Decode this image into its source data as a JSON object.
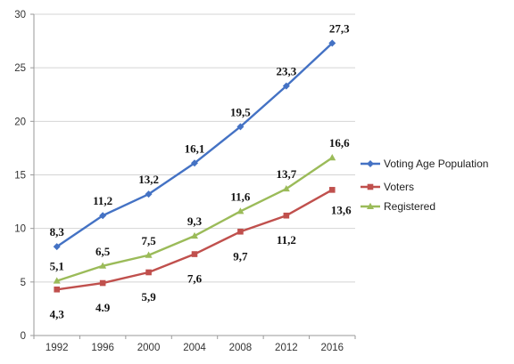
{
  "chart_data": {
    "type": "line",
    "x": [
      "1992",
      "1996",
      "2000",
      "2004",
      "2008",
      "2012",
      "2016"
    ],
    "ylim": [
      0,
      30
    ],
    "yticks": [
      "0",
      "5",
      "10",
      "15",
      "20",
      "25",
      "30"
    ],
    "grid": true,
    "legend_position": "right",
    "series": [
      {
        "name": "Voting Age Population",
        "color": "#4472C4",
        "marker": "diamond",
        "values": [
          8.3,
          11.2,
          13.2,
          16.1,
          19.5,
          23.3,
          27.3
        ],
        "labels": [
          "8,3",
          "11,2",
          "13,2",
          "16,1",
          "19,5",
          "23,3",
          "27,3"
        ]
      },
      {
        "name": "Voters",
        "color": "#C0504D",
        "marker": "square",
        "values": [
          4.3,
          4.9,
          5.9,
          7.6,
          9.7,
          11.2,
          13.6
        ],
        "labels": [
          "4,3",
          "4.9",
          "5,9",
          "7,6",
          "9,7",
          "11,2",
          "13,6"
        ]
      },
      {
        "name": "Registered",
        "color": "#9BBB59",
        "marker": "triangle",
        "values": [
          5.1,
          6.5,
          7.5,
          9.3,
          11.6,
          13.7,
          16.6
        ],
        "labels": [
          "5,1",
          "6,5",
          "7,5",
          "9,3",
          "11,6",
          "13,7",
          "16,6"
        ]
      }
    ]
  }
}
